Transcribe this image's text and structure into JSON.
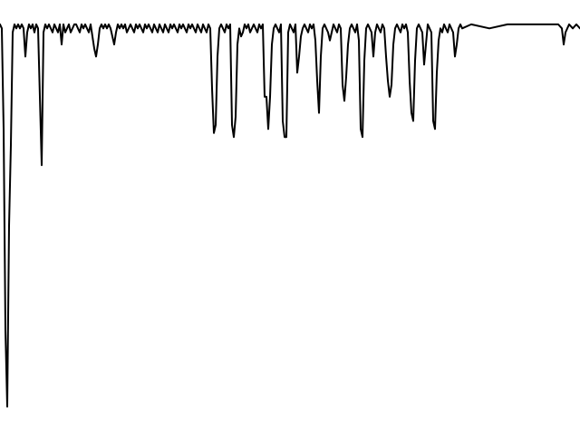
{
  "chart_data": {
    "type": "line",
    "title": "",
    "xlabel": "",
    "ylabel": "",
    "xlim": [
      0,
      640
    ],
    "ylim": [
      0,
      1.0
    ],
    "grid": false,
    "axes_visible": false,
    "line_color": "#000000",
    "background_color": "#ffffff",
    "series": [
      {
        "x": [
          0,
          2,
          4,
          6,
          8,
          10,
          12,
          14,
          16,
          18,
          20,
          22,
          24,
          26,
          28,
          30,
          32,
          34,
          36,
          38,
          40,
          42,
          44,
          46,
          48,
          50,
          52,
          54,
          56,
          58,
          60,
          62,
          64,
          66,
          68,
          70,
          72,
          74,
          76,
          78,
          80,
          82,
          84,
          86,
          88,
          90,
          92,
          94,
          96,
          98,
          100,
          102,
          104,
          106,
          108,
          110,
          112,
          114,
          116,
          118,
          120,
          122,
          124,
          126,
          128,
          130,
          132,
          134,
          136,
          138,
          140,
          142,
          144,
          146,
          148,
          150,
          152,
          154,
          156,
          158,
          160,
          162,
          164,
          166,
          168,
          170,
          172,
          174,
          176,
          178,
          180,
          182,
          184,
          186,
          188,
          190,
          192,
          194,
          196,
          198,
          200,
          202,
          204,
          206,
          208,
          210,
          212,
          214,
          216,
          218,
          220,
          222,
          224,
          226,
          228,
          230,
          232,
          234,
          236,
          238,
          240,
          242,
          244,
          246,
          248,
          250,
          252,
          254,
          256,
          258,
          260,
          262,
          264,
          266,
          268,
          270,
          272,
          274,
          276,
          278,
          280,
          282,
          284,
          286,
          288,
          290,
          292,
          294,
          296,
          298,
          300,
          302,
          304,
          306,
          308,
          310,
          312,
          314,
          316,
          318,
          320,
          322,
          324,
          326,
          328,
          330,
          332,
          334,
          336,
          338,
          340,
          342,
          344,
          346,
          348,
          350,
          352,
          354,
          356,
          358,
          360,
          362,
          364,
          366,
          368,
          370,
          372,
          374,
          376,
          378,
          380,
          382,
          384,
          386,
          388,
          390,
          392,
          394,
          396,
          398,
          400,
          402,
          404,
          406,
          408,
          410,
          412,
          414,
          416,
          418,
          420,
          422,
          424,
          426,
          428,
          430,
          432,
          434,
          436,
          438,
          440,
          442,
          444,
          446,
          448,
          450,
          452,
          454,
          456,
          458,
          460,
          462,
          464,
          466,
          468,
          470,
          472,
          474,
          476,
          478,
          480,
          482,
          484,
          486,
          488,
          490,
          492,
          494,
          496,
          498,
          500,
          502,
          504,
          506,
          508,
          510,
          520,
          540,
          560,
          580,
          600,
          610,
          616,
          620,
          622,
          624,
          626,
          628,
          632,
          636,
          640
        ],
        "y": [
          0.98,
          0.97,
          0.72,
          0.22,
          0.03,
          0.48,
          0.68,
          0.96,
          0.98,
          0.97,
          0.98,
          0.97,
          0.98,
          0.97,
          0.9,
          0.96,
          0.98,
          0.97,
          0.98,
          0.96,
          0.98,
          0.97,
          0.8,
          0.63,
          0.96,
          0.98,
          0.97,
          0.98,
          0.97,
          0.96,
          0.98,
          0.97,
          0.96,
          0.98,
          0.93,
          0.98,
          0.96,
          0.97,
          0.98,
          0.96,
          0.97,
          0.98,
          0.98,
          0.97,
          0.96,
          0.98,
          0.97,
          0.98,
          0.97,
          0.96,
          0.98,
          0.95,
          0.92,
          0.9,
          0.93,
          0.97,
          0.98,
          0.97,
          0.98,
          0.97,
          0.98,
          0.97,
          0.95,
          0.93,
          0.96,
          0.98,
          0.97,
          0.98,
          0.97,
          0.98,
          0.96,
          0.97,
          0.98,
          0.97,
          0.96,
          0.98,
          0.97,
          0.98,
          0.97,
          0.96,
          0.98,
          0.97,
          0.98,
          0.97,
          0.96,
          0.98,
          0.97,
          0.96,
          0.98,
          0.97,
          0.96,
          0.98,
          0.97,
          0.96,
          0.98,
          0.97,
          0.98,
          0.97,
          0.96,
          0.98,
          0.97,
          0.98,
          0.97,
          0.96,
          0.98,
          0.97,
          0.98,
          0.97,
          0.96,
          0.98,
          0.97,
          0.96,
          0.98,
          0.97,
          0.96,
          0.98,
          0.97,
          0.82,
          0.71,
          0.73,
          0.9,
          0.97,
          0.98,
          0.97,
          0.96,
          0.98,
          0.97,
          0.98,
          0.73,
          0.7,
          0.75,
          0.93,
          0.97,
          0.95,
          0.96,
          0.98,
          0.97,
          0.98,
          0.96,
          0.97,
          0.98,
          0.97,
          0.96,
          0.98,
          0.97,
          0.98,
          0.8,
          0.8,
          0.72,
          0.8,
          0.93,
          0.97,
          0.98,
          0.97,
          0.96,
          0.98,
          0.74,
          0.7,
          0.7,
          0.96,
          0.98,
          0.97,
          0.96,
          0.98,
          0.86,
          0.9,
          0.95,
          0.97,
          0.98,
          0.97,
          0.96,
          0.98,
          0.97,
          0.98,
          0.94,
          0.84,
          0.76,
          0.9,
          0.97,
          0.98,
          0.97,
          0.96,
          0.94,
          0.96,
          0.98,
          0.97,
          0.96,
          0.98,
          0.97,
          0.83,
          0.79,
          0.85,
          0.93,
          0.97,
          0.98,
          0.97,
          0.96,
          0.98,
          0.94,
          0.72,
          0.7,
          0.89,
          0.97,
          0.98,
          0.97,
          0.96,
          0.9,
          0.96,
          0.98,
          0.97,
          0.96,
          0.98,
          0.97,
          0.9,
          0.84,
          0.8,
          0.83,
          0.93,
          0.97,
          0.98,
          0.97,
          0.96,
          0.98,
          0.97,
          0.98,
          0.96,
          0.84,
          0.76,
          0.74,
          0.89,
          0.97,
          0.98,
          0.97,
          0.96,
          0.88,
          0.93,
          0.98,
          0.97,
          0.96,
          0.74,
          0.72,
          0.86,
          0.94,
          0.97,
          0.96,
          0.98,
          0.97,
          0.96,
          0.98,
          0.97,
          0.96,
          0.9,
          0.93,
          0.97,
          0.98,
          0.97,
          0.98,
          0.97,
          0.98,
          0.98,
          0.98,
          0.98,
          0.98,
          0.97,
          0.93,
          0.96,
          0.97,
          0.98,
          0.97,
          0.98,
          0.97
        ]
      }
    ]
  }
}
